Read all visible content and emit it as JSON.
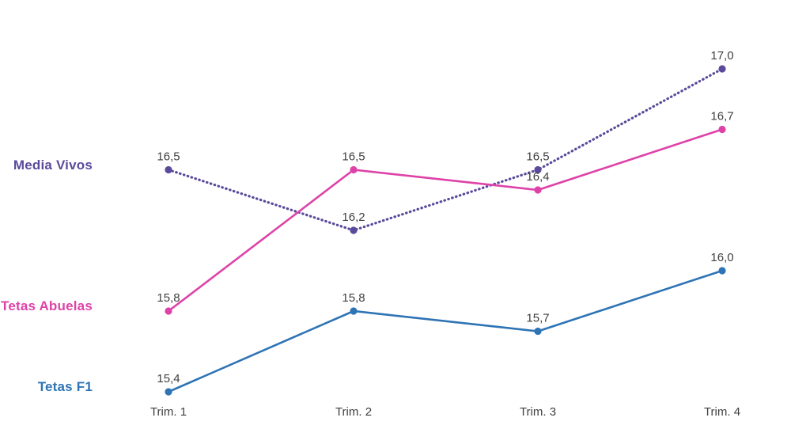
{
  "chart_data": {
    "type": "line",
    "title": "",
    "xlabel": "",
    "ylabel": "",
    "grid": false,
    "legend_position": "left-of-first-point",
    "decimal_separator": ",",
    "categories": [
      "Trim. 1",
      "Trim. 2",
      "Trim. 3",
      "Trim. 4"
    ],
    "ylim": [
      15.4,
      17.0
    ],
    "series": [
      {
        "name": "Media Vivos",
        "color": "#5b4a9b",
        "line_style": "dotted",
        "values": [
          16.5,
          16.2,
          16.5,
          17.0
        ],
        "labels": [
          "16,5",
          "16,2",
          "16,5",
          "17,0"
        ]
      },
      {
        "name": "Tetas Abuelas",
        "color": "#de42a8",
        "line_style": "solid",
        "values": [
          15.8,
          16.5,
          16.4,
          16.7
        ],
        "labels": [
          "15,8",
          "16,5",
          "16,4",
          "16,7"
        ]
      },
      {
        "name": "Tetas F1",
        "color": "#2e74b5",
        "line_style": "solid",
        "values": [
          15.4,
          15.8,
          15.7,
          16.0
        ],
        "labels": [
          "15,4",
          "15,8",
          "15,7",
          "16,0"
        ]
      }
    ],
    "label_color": "#3f3f3f",
    "axis_label_color": "#404040"
  }
}
